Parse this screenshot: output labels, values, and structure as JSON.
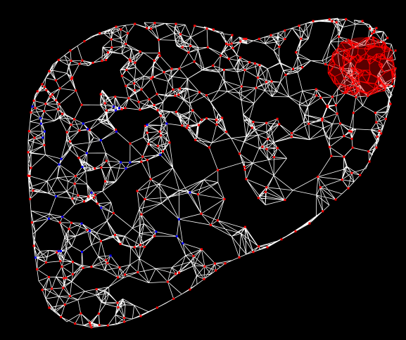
{
  "scene": {
    "subject": "triangulated-mesh",
    "colors": {
      "background": "#000000",
      "edges": "#ffffff",
      "nodes": "#ff0000",
      "boundary_nodes": "#0000ff",
      "refined_region": "#ff0000"
    }
  }
}
